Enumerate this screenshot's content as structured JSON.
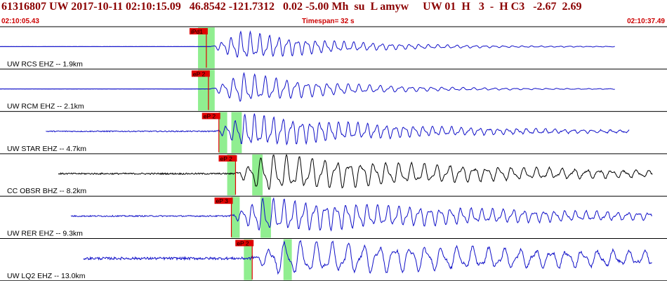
{
  "header": {
    "event_line": "61316807 UW 2017-10-11 02:10:15.09   46.8542 -121.7312   0.02 -5.00 Mh  su  L amyw     UW 01  H   3  -  H C3   -2.67  2.69",
    "start_time": "02:10:05.43",
    "end_time": "02:10:37.49",
    "timespan": "Timespan=  32 s"
  },
  "colors": {
    "header_text": "#8b0000",
    "trace_blue": "#1010c8",
    "trace_black": "#000000",
    "pick_red": "#e00000",
    "window_green": "#90ee90"
  },
  "chart_data": {
    "type": "seismogram",
    "x_unit": "s",
    "time_span_s": 32,
    "traces": [
      {
        "label": "UW RCS EHZ -- 1.9km",
        "color": "blue",
        "phase": "iPd1",
        "pick_s": 9.9,
        "windows_s": [
          [
            9.5,
            10.3
          ]
        ],
        "signal_start_s": 10.1,
        "signal_end_s": 29.5,
        "noise": 0.005,
        "peak": 0.48,
        "decay": 0.22,
        "period": 0.45
      },
      {
        "label": "UW RCM EHZ -- 2.1km",
        "color": "blue",
        "phase": "eP 2",
        "pick_s": 10.0,
        "windows_s": [
          [
            9.5,
            10.3
          ]
        ],
        "signal_start_s": 10.1,
        "signal_end_s": 29.5,
        "noise": 0.005,
        "peak": 0.5,
        "decay": 0.22,
        "period": 0.5
      },
      {
        "label": "UW STAR EHZ -- 4.7km",
        "color": "blue",
        "phase": "eP 2",
        "pick_s": 10.5,
        "windows_s": [
          [
            10.5,
            10.9
          ],
          [
            11.1,
            11.6
          ]
        ],
        "signal_start_s": 10.3,
        "signal_end_s": 30.2,
        "noise": 0.025,
        "peak": 0.55,
        "decay": 0.14,
        "period": 0.45
      },
      {
        "label": "CC OBSR BHZ -- 8.2km",
        "color": "black",
        "phase": "eP 2",
        "pick_s": 11.3,
        "windows_s": [
          [
            10.9,
            11.3
          ],
          [
            12.1,
            12.6
          ]
        ],
        "signal_start_s": 11.2,
        "signal_end_s": 31.3,
        "noise": 0.035,
        "peak": 0.6,
        "decay": 0.09,
        "period": 0.6
      },
      {
        "label": "UW RER EHZ -- 9.3km",
        "color": "blue",
        "phase": "eP 3",
        "pick_s": 11.1,
        "windows_s": [
          [
            11.1,
            11.5
          ],
          [
            12.5,
            13.0
          ]
        ],
        "signal_start_s": 11.0,
        "signal_end_s": 31.3,
        "noise": 0.03,
        "peak": 0.55,
        "decay": 0.08,
        "period": 0.5
      },
      {
        "label": "UW LQ2 EHZ -- 13.0km",
        "color": "blue",
        "phase": "eP 2",
        "pick_s": 12.1,
        "windows_s": [
          [
            11.7,
            12.1
          ],
          [
            13.6,
            14.0
          ]
        ],
        "signal_start_s": 12.0,
        "signal_end_s": 31.3,
        "noise": 0.06,
        "peak": 0.55,
        "decay": 0.05,
        "period": 0.75
      }
    ]
  }
}
